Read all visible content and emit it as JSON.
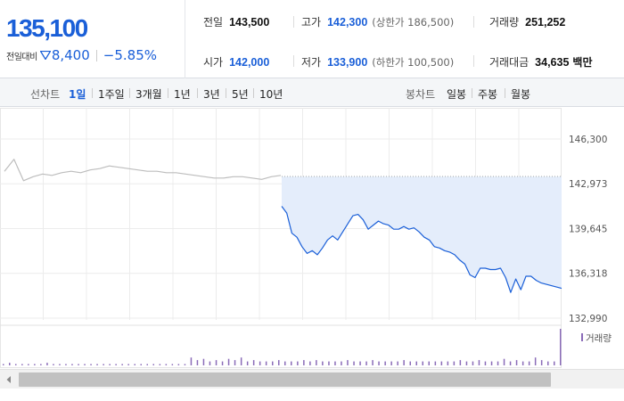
{
  "summary": {
    "current_price": "135,100",
    "change_label": "전일대비",
    "change_amount": "8,400",
    "change_percent": "−5.85%",
    "stats": {
      "prev_close": {
        "label": "전일",
        "value": "143,500"
      },
      "high": {
        "label": "고가",
        "value": "142,300",
        "sub": "(상한가 186,500)"
      },
      "volume": {
        "label": "거래량",
        "value": "251,252"
      },
      "open": {
        "label": "시가",
        "value": "142,000"
      },
      "low": {
        "label": "저가",
        "value": "133,900",
        "sub": "(하한가 100,500)"
      },
      "trade_value": {
        "label": "거래대금",
        "value": "34,635",
        "unit": "백만"
      }
    }
  },
  "period_bar": {
    "line_chart_label": "선차트",
    "line_periods": [
      "1일",
      "1주일",
      "3개월",
      "1년",
      "3년",
      "5년",
      "10년"
    ],
    "active_line_period": "1일",
    "candle_chart_label": "봉차트",
    "candle_periods": [
      "일봉",
      "주봉",
      "월봉"
    ]
  },
  "colors": {
    "accent_blue": "#1a5fd8",
    "down_blue": "#1a5fd8",
    "prev_day_line": "#bdbdbd",
    "fill": "#e4edfb",
    "volume_bar": "#8a6bb8"
  },
  "icons": {
    "down_arrow": "down-triangle-icon",
    "scroll_left": "chevron-left-icon"
  },
  "chart_data": {
    "type": "line",
    "title": "",
    "xlabel": "",
    "ylabel": "",
    "ylim": [
      132990,
      146300
    ],
    "y_ticks": [
      "146,300",
      "142,973",
      "139,645",
      "136,318",
      "132,990"
    ],
    "y_tick_values": [
      146300,
      142973,
      139645,
      136318,
      132990
    ],
    "reference_line": {
      "value": 143500,
      "label": "전일"
    },
    "volume_legend": "거래량",
    "series": [
      {
        "values": [
          143900,
          144800,
          143200,
          143500,
          143700,
          143600,
          143800,
          143900,
          143800,
          144000,
          144100,
          144300,
          144200,
          144100,
          144000,
          143900,
          143900,
          143800,
          143800,
          143700,
          143600,
          143500,
          143400,
          143400,
          143500,
          143500,
          143400,
          143300,
          143500,
          143600
        ]
      },
      {
        "values": [
          141300,
          140800,
          139300,
          139000,
          138300,
          137800,
          138000,
          137700,
          138200,
          138800,
          139100,
          138800,
          139400,
          140000,
          140600,
          140700,
          140300,
          139600,
          139900,
          140200,
          140000,
          139900,
          139600,
          139600,
          139800,
          139600,
          139700,
          139400,
          139000,
          138800,
          138300,
          138200,
          138000,
          137900,
          137700,
          137300,
          137000,
          136200,
          136000,
          136700,
          136700,
          136600,
          136600,
          136700,
          136000,
          134900,
          135900,
          135100,
          136100,
          136100,
          135800,
          135600,
          135500,
          135400,
          135300,
          135200
        ]
      }
    ],
    "volume": [
      1,
      2,
      1,
      1,
      1,
      1,
      1,
      2,
      1,
      1,
      1,
      1,
      1,
      1,
      1,
      1,
      1,
      1,
      1,
      1,
      1,
      1,
      1,
      1,
      1,
      1,
      1,
      1,
      1,
      1,
      6,
      4,
      5,
      3,
      4,
      3,
      5,
      4,
      6,
      3,
      4,
      3,
      3,
      3,
      4,
      3,
      3,
      3,
      4,
      3,
      4,
      3,
      3,
      3,
      3,
      4,
      3,
      3,
      3,
      4,
      3,
      3,
      3,
      3,
      4,
      3,
      3,
      3,
      3,
      3,
      3,
      3,
      3,
      4,
      3,
      3,
      4,
      3,
      3,
      3,
      5,
      3,
      4,
      3,
      3,
      6,
      4,
      3,
      3,
      28
    ]
  }
}
